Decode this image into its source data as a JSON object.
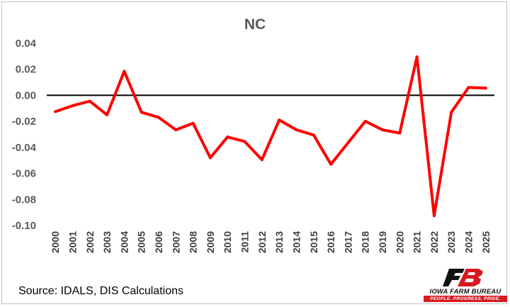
{
  "chart_data": {
    "type": "line",
    "title": "NC",
    "xlabel": "",
    "ylabel": "",
    "categories": [
      "2000",
      "2001",
      "2002",
      "2003",
      "2004",
      "2005",
      "2006",
      "2007",
      "2008",
      "2009",
      "2010",
      "2011",
      "2012",
      "2013",
      "2014",
      "2015",
      "2016",
      "2017",
      "2018",
      "2019",
      "2020",
      "2021",
      "2022",
      "2023",
      "2024",
      "2025"
    ],
    "series": [
      {
        "values": [
          -0.0125,
          -0.008,
          -0.0045,
          -0.015,
          0.0185,
          -0.013,
          -0.017,
          -0.0265,
          -0.0215,
          -0.048,
          -0.032,
          -0.0355,
          -0.0495,
          -0.019,
          -0.0265,
          -0.0305,
          -0.053,
          -0.0365,
          -0.02,
          -0.0265,
          -0.029,
          0.0295,
          -0.0925,
          -0.013,
          0.006,
          0.0055
        ]
      }
    ],
    "ylim": [
      -0.1,
      0.04
    ],
    "yticks": [
      "0.04",
      "0.02",
      "0.00",
      "-0.02",
      "-0.04",
      "-0.06",
      "-0.08",
      "-0.10"
    ],
    "grid": false,
    "line_color": "#ff0000",
    "zero_line_color": "#000000"
  },
  "footer": {
    "source": "Source: IDALS, DIS Calculations",
    "logo_name": "IOWA FARM BUREAU",
    "logo_tagline": "PEOPLE. PROGRESS. PRIDE."
  },
  "colors": {
    "brand_red": "#d71920",
    "logo_black": "#111111"
  }
}
